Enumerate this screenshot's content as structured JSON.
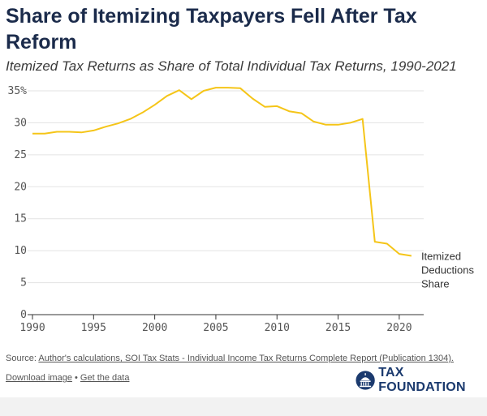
{
  "title": "Share of Itemizing Taxpayers Fell After Tax Reform",
  "subtitle": "Itemized Tax Returns as Share of Total Individual Tax Returns, 1990-2021",
  "source_prefix": "Source: ",
  "source_link": "Author's calculations, SOI Tax Stats - Individual Income Tax Returns Complete Report (Publication 1304).",
  "download_label": "Download image",
  "separator": " • ",
  "data_label": "Get the data",
  "brand_name": "TAX FOUNDATION",
  "colors": {
    "line": "#f5c518",
    "grid": "#e3e3e3",
    "axis": "#333333",
    "brand": "#1b3a6e"
  },
  "chart_data": {
    "type": "line",
    "title": "Share of Itemizing Taxpayers Fell After Tax Reform",
    "subtitle": "Itemized Tax Returns as Share of Total Individual Tax Returns, 1990-2021",
    "xlabel": "",
    "ylabel": "",
    "xlim": [
      1990,
      2022
    ],
    "ylim": [
      0,
      35
    ],
    "x_ticks": [
      "1990",
      "1995",
      "2000",
      "2005",
      "2010",
      "2015",
      "2020"
    ],
    "y_ticks": [
      "0",
      "5",
      "10",
      "15",
      "20",
      "25",
      "30",
      "35%"
    ],
    "series": [
      {
        "name": "Itemized Deductions Share",
        "label_lines": [
          "Itemized",
          "Deductions",
          "Share"
        ],
        "x": [
          1990,
          1991,
          1992,
          1993,
          1994,
          1995,
          1996,
          1997,
          1998,
          1999,
          2000,
          2001,
          2002,
          2003,
          2004,
          2005,
          2006,
          2007,
          2008,
          2009,
          2010,
          2011,
          2012,
          2013,
          2014,
          2015,
          2016,
          2017,
          2018,
          2019,
          2020,
          2021
        ],
        "values": [
          28.3,
          28.3,
          28.6,
          28.6,
          28.5,
          28.8,
          29.4,
          29.9,
          30.6,
          31.6,
          32.8,
          34.2,
          35.1,
          33.7,
          35.0,
          35.5,
          35.5,
          35.4,
          33.8,
          32.5,
          32.6,
          31.8,
          31.5,
          30.2,
          29.7,
          29.7,
          30.0,
          30.6,
          11.4,
          11.1,
          9.5,
          9.2
        ]
      }
    ]
  }
}
